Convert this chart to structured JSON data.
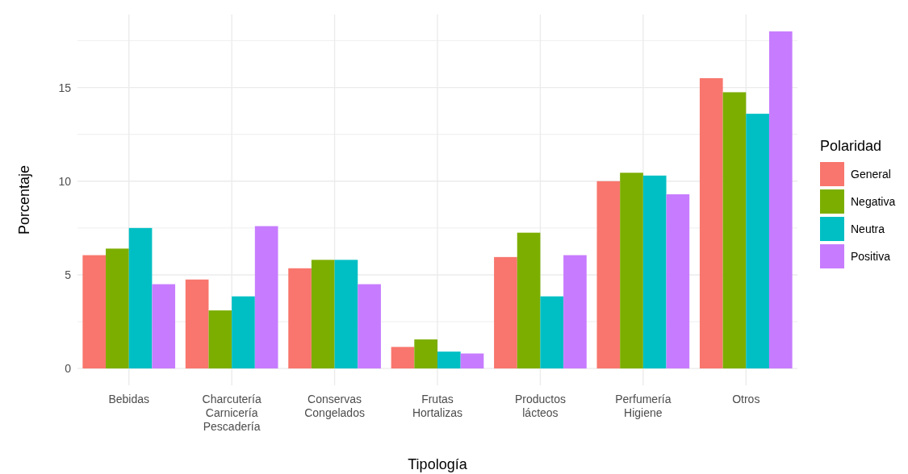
{
  "chart_data": {
    "type": "bar",
    "xlabel": "Tipología",
    "ylabel": "Porcentaje",
    "legend_title": "Polaridad",
    "legend": "right",
    "grid": true,
    "categories": [
      "Bebidas",
      "Charcutería\nCarnicería\nPescadería",
      "Conservas\nCongelados",
      "Frutas\nHortalizas",
      "Productos\nlácteos",
      "Perfumería\nHigiene",
      "Otros"
    ],
    "ylim": [
      -0.9,
      18.9
    ],
    "yticks": [
      0,
      {
        "value": 2.5,
        "label": null
      },
      5,
      {
        "value": 7.5,
        "label": null
      },
      10,
      {
        "value": 12.5,
        "label": null
      },
      15,
      {
        "value": 17.5,
        "label": null
      }
    ],
    "series": [
      {
        "name": "General",
        "color": "#f8766d",
        "values": [
          6.05,
          4.75,
          5.35,
          1.15,
          5.95,
          10.0,
          15.5
        ]
      },
      {
        "name": "Negativa",
        "color": "#7cae00",
        "values": [
          6.4,
          3.1,
          5.8,
          1.55,
          7.25,
          10.45,
          14.75
        ]
      },
      {
        "name": "Neutra",
        "color": "#00bfc4",
        "values": [
          7.5,
          3.85,
          5.8,
          0.9,
          3.85,
          10.3,
          13.6
        ]
      },
      {
        "name": "Positiva",
        "color": "#c77cff",
        "values": [
          4.5,
          7.6,
          4.5,
          0.8,
          6.05,
          9.3,
          18.0
        ]
      }
    ]
  }
}
